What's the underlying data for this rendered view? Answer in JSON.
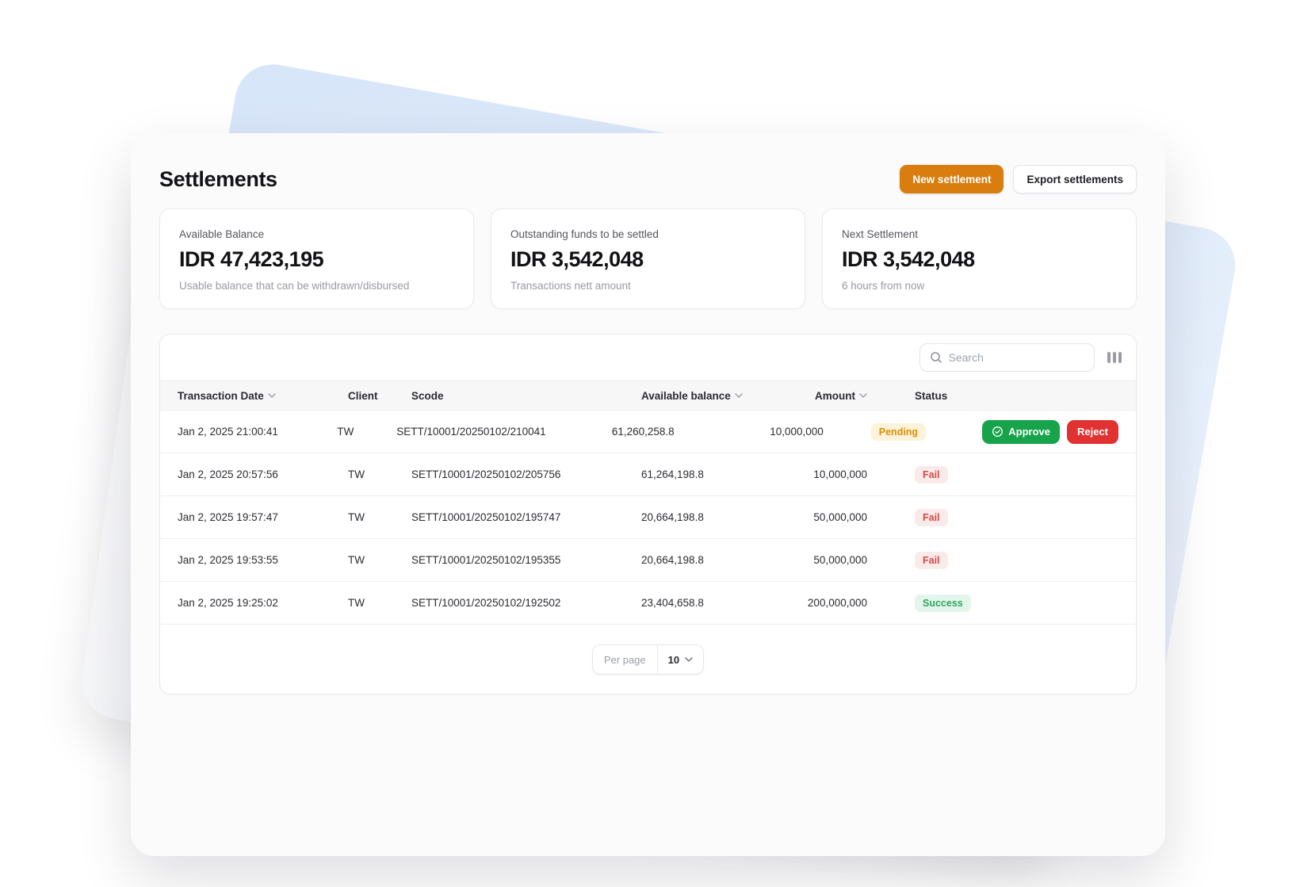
{
  "page": {
    "title": "Settlements"
  },
  "topbar": {
    "new_settlement_label": "New settlement",
    "export_settlements_label": "Export settlements"
  },
  "stats": [
    {
      "label": "Available Balance",
      "value": "IDR 47,423,195",
      "sub": "Usable balance that can be withdrawn/disbursed"
    },
    {
      "label": "Outstanding funds to be settled",
      "value": "IDR 3,542,048",
      "sub": "Transactions nett amount"
    },
    {
      "label": "Next Settlement",
      "value": "IDR 3,542,048",
      "sub": "6 hours from now"
    }
  ],
  "table": {
    "search_placeholder": "Search",
    "columns": [
      {
        "label": "Transaction Date",
        "sortable": true
      },
      {
        "label": "Client",
        "sortable": false
      },
      {
        "label": "Scode",
        "sortable": false
      },
      {
        "label": "Available balance",
        "sortable": true
      },
      {
        "label": "Amount",
        "sortable": true
      },
      {
        "label": "Status",
        "sortable": false
      }
    ],
    "rows": [
      {
        "date": "Jan 2, 2025 21:00:41",
        "client": "TW",
        "scode": "SETT/10001/20250102/210041",
        "balance": "61,260,258.8",
        "amount": "10,000,000",
        "status": "Pending",
        "variant": "pending",
        "actions": true
      },
      {
        "date": "Jan 2, 2025 20:57:56",
        "client": "TW",
        "scode": "SETT/10001/20250102/205756",
        "balance": "61,264,198.8",
        "amount": "10,000,000",
        "status": "Fail",
        "variant": "fail",
        "actions": false
      },
      {
        "date": "Jan 2, 2025 19:57:47",
        "client": "TW",
        "scode": "SETT/10001/20250102/195747",
        "balance": "20,664,198.8",
        "amount": "50,000,000",
        "status": "Fail",
        "variant": "fail",
        "actions": false
      },
      {
        "date": "Jan 2, 2025 19:53:55",
        "client": "TW",
        "scode": "SETT/10001/20250102/195355",
        "balance": "20,664,198.8",
        "amount": "50,000,000",
        "status": "Fail",
        "variant": "fail",
        "actions": false
      },
      {
        "date": "Jan 2, 2025 19:25:02",
        "client": "TW",
        "scode": "SETT/10001/20250102/192502",
        "balance": "23,404,658.8",
        "amount": "200,000,000",
        "status": "Success",
        "variant": "success",
        "actions": false
      }
    ],
    "approve_label": "Approve",
    "reject_label": "Reject",
    "footer": {
      "per_page_label": "Per page",
      "per_page_value": "10"
    }
  },
  "colors": {
    "accent_orange": "#d97d0e",
    "approve_green": "#17a34a",
    "reject_red": "#e13232",
    "pending_text": "#d98e0b",
    "fail_text": "#d04a44",
    "success_text": "#2fa35c"
  }
}
